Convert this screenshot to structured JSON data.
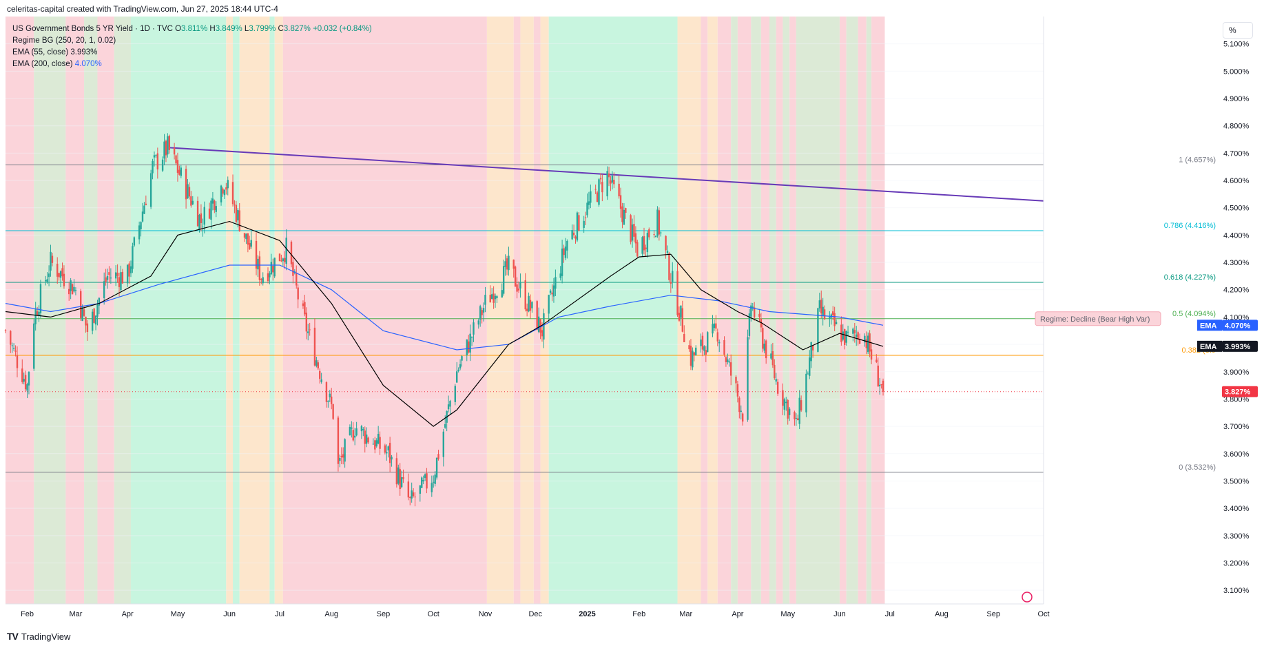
{
  "header": {
    "credit": "celeritas-capital created with TradingView.com, Jun 27, 2025 18:44 UTC-4"
  },
  "legend": {
    "title": "US Government Bonds 5 YR Yield · 1D · TVC",
    "o_label": "O",
    "o_value": "3.811%",
    "h_label": "H",
    "h_value": "3.849%",
    "l_label": "L",
    "l_value": "3.799%",
    "c_label": "C",
    "c_value": "3.827%",
    "change": "+0.032 (+0.84%)",
    "regime_label": "Regime BG (250, 20, 1, 0.02)",
    "ema55_label": "EMA (55, close)",
    "ema55_value": "3.993%",
    "ema200_label": "EMA (200, close)",
    "ema200_value": "4.070%"
  },
  "scale_button": "%",
  "footer": {
    "brand": "TradingView",
    "logo_icon": "tradingview-logo-icon"
  },
  "colors": {
    "up": "#26a69a",
    "down": "#ef5350",
    "ema55": "#000000",
    "ema200": "#2962ff",
    "trendline": "#673ab7",
    "regime_green": "#c8f5df",
    "regime_red": "#fbd4da",
    "regime_orange": "#fde6cc",
    "regime_sage": "#dcead6"
  },
  "chart_data": {
    "type": "candlestick",
    "title": "US Government Bonds 5 YR Yield · 1D · TVC",
    "y_unit": "%",
    "ylim": [
      3.05,
      5.2
    ],
    "y_ticks": [
      "5.100%",
      "5.000%",
      "4.900%",
      "4.800%",
      "4.700%",
      "4.600%",
      "4.500%",
      "4.400%",
      "4.300%",
      "4.200%",
      "4.100%",
      "4.000%",
      "3.900%",
      "3.800%",
      "3.700%",
      "3.600%",
      "3.500%",
      "3.400%",
      "3.300%",
      "3.200%",
      "3.100%"
    ],
    "x_ticks": [
      "Feb",
      "Mar",
      "Apr",
      "May",
      "Jun",
      "Jul",
      "Aug",
      "Sep",
      "Oct",
      "Nov",
      "Dec",
      "2025",
      "Feb",
      "Mar",
      "Apr",
      "May",
      "Jun",
      "Jul",
      "Aug",
      "Sep",
      "Oct"
    ],
    "price_path": [
      [
        "2024-01-19",
        4.05
      ],
      [
        "2024-02-01",
        3.85
      ],
      [
        "2024-02-05",
        4.1
      ],
      [
        "2024-02-15",
        4.3
      ],
      [
        "2024-03-01",
        4.2
      ],
      [
        "2024-03-08",
        4.05
      ],
      [
        "2024-03-20",
        4.25
      ],
      [
        "2024-04-01",
        4.25
      ],
      [
        "2024-04-16",
        4.65
      ],
      [
        "2024-04-25",
        4.72
      ],
      [
        "2024-05-15",
        4.45
      ],
      [
        "2024-05-29",
        4.6
      ],
      [
        "2024-06-10",
        4.4
      ],
      [
        "2024-06-20",
        4.25
      ],
      [
        "2024-07-05",
        4.35
      ],
      [
        "2024-07-15",
        4.1
      ],
      [
        "2024-08-02",
        3.75
      ],
      [
        "2024-08-05",
        3.55
      ],
      [
        "2024-08-15",
        3.7
      ],
      [
        "2024-09-04",
        3.6
      ],
      [
        "2024-09-17",
        3.42
      ],
      [
        "2024-10-01",
        3.52
      ],
      [
        "2024-10-15",
        3.9
      ],
      [
        "2024-11-01",
        4.15
      ],
      [
        "2024-11-15",
        4.28
      ],
      [
        "2024-12-05",
        4.05
      ],
      [
        "2024-12-20",
        4.38
      ],
      [
        "2025-01-13",
        4.62
      ],
      [
        "2025-01-31",
        4.35
      ],
      [
        "2025-02-12",
        4.45
      ],
      [
        "2025-03-04",
        3.95
      ],
      [
        "2025-03-20",
        4.05
      ],
      [
        "2025-04-04",
        3.75
      ],
      [
        "2025-04-09",
        4.15
      ],
      [
        "2025-04-25",
        3.85
      ],
      [
        "2025-05-06",
        3.7
      ],
      [
        "2025-05-20",
        4.12
      ],
      [
        "2025-06-05",
        4.02
      ],
      [
        "2025-06-15",
        4.05
      ],
      [
        "2025-06-27",
        3.827
      ]
    ],
    "ema55_path": [
      [
        "2024-01-19",
        4.12
      ],
      [
        "2024-02-15",
        4.1
      ],
      [
        "2024-03-15",
        4.15
      ],
      [
        "2024-04-15",
        4.25
      ],
      [
        "2024-05-01",
        4.4
      ],
      [
        "2024-06-01",
        4.45
      ],
      [
        "2024-07-01",
        4.38
      ],
      [
        "2024-08-01",
        4.15
      ],
      [
        "2024-09-01",
        3.85
      ],
      [
        "2024-10-01",
        3.7
      ],
      [
        "2024-10-15",
        3.76
      ],
      [
        "2024-11-15",
        4.0
      ],
      [
        "2024-12-05",
        4.07
      ],
      [
        "2025-01-15",
        4.25
      ],
      [
        "2025-02-01",
        4.32
      ],
      [
        "2025-02-20",
        4.33
      ],
      [
        "2025-03-10",
        4.2
      ],
      [
        "2025-04-01",
        4.12
      ],
      [
        "2025-04-15",
        4.08
      ],
      [
        "2025-05-10",
        3.98
      ],
      [
        "2025-06-01",
        4.04
      ],
      [
        "2025-06-27",
        3.993
      ]
    ],
    "ema200_path": [
      [
        "2024-01-19",
        4.15
      ],
      [
        "2024-02-15",
        4.12
      ],
      [
        "2024-03-15",
        4.15
      ],
      [
        "2024-04-20",
        4.22
      ],
      [
        "2024-06-01",
        4.29
      ],
      [
        "2024-07-01",
        4.29
      ],
      [
        "2024-08-01",
        4.2
      ],
      [
        "2024-09-01",
        4.05
      ],
      [
        "2024-10-15",
        3.98
      ],
      [
        "2024-11-15",
        4.0
      ],
      [
        "2024-12-15",
        4.1
      ],
      [
        "2025-01-15",
        4.14
      ],
      [
        "2025-02-20",
        4.18
      ],
      [
        "2025-03-20",
        4.16
      ],
      [
        "2025-04-20",
        4.12
      ],
      [
        "2025-06-01",
        4.1
      ],
      [
        "2025-06-27",
        4.07
      ]
    ],
    "trendline": {
      "from": [
        "2024-04-26",
        4.72
      ],
      "to": [
        "2025-10-01",
        4.525
      ]
    },
    "fib_levels": [
      {
        "label": "1 (4.657%)",
        "value": 4.657,
        "color": "#787b86"
      },
      {
        "label": "0.786 (4.416%)",
        "value": 4.416,
        "color": "#00bcd4"
      },
      {
        "label": "0.618 (4.227%)",
        "value": 4.227,
        "color": "#089981"
      },
      {
        "label": "0.5 (4.094%)",
        "value": 4.094,
        "color": "#4caf50"
      },
      {
        "label": "0.382 (3.9",
        "value": 3.96,
        "color": "#ff9800"
      },
      {
        "label": "0 (3.532%)",
        "value": 3.532,
        "color": "#787b86"
      }
    ],
    "regime_label": "Regime: Decline (Bear High Var)",
    "tags": [
      {
        "label": "EMA",
        "value": "4.070%",
        "y": 4.07,
        "color": "#2962ff"
      },
      {
        "label": "EMA",
        "value": "3.993%",
        "y": 3.993,
        "color": "#131722"
      },
      {
        "label": "",
        "value": "3.827%",
        "y": 3.827,
        "color": "#f23645"
      }
    ],
    "last_close": 3.827,
    "regime_bg": [
      [
        "2024-01-19",
        "red"
      ],
      [
        "2024-02-05",
        "sage"
      ],
      [
        "2024-02-24",
        "red"
      ],
      [
        "2024-03-06",
        "sage"
      ],
      [
        "2024-03-14",
        "red"
      ],
      [
        "2024-03-24",
        "sage"
      ],
      [
        "2024-04-03",
        "green"
      ],
      [
        "2024-05-30",
        "orange"
      ],
      [
        "2024-06-03",
        "green"
      ],
      [
        "2024-06-07",
        "orange"
      ],
      [
        "2024-06-25",
        "green"
      ],
      [
        "2024-06-28",
        "orange"
      ],
      [
        "2024-07-03",
        "red"
      ],
      [
        "2024-11-02",
        "orange"
      ],
      [
        "2024-11-18",
        "red"
      ],
      [
        "2024-11-22",
        "orange"
      ],
      [
        "2024-11-30",
        "red"
      ],
      [
        "2024-12-04",
        "orange"
      ],
      [
        "2024-12-09",
        "green"
      ],
      [
        "2025-02-24",
        "orange"
      ],
      [
        "2025-03-10",
        "red"
      ],
      [
        "2025-03-14",
        "orange"
      ],
      [
        "2025-03-20",
        "red"
      ],
      [
        "2025-03-28",
        "sage"
      ],
      [
        "2025-04-01",
        "red"
      ],
      [
        "2025-04-09",
        "sage"
      ],
      [
        "2025-04-15",
        "red"
      ],
      [
        "2025-04-20",
        "sage"
      ],
      [
        "2025-04-24",
        "red"
      ],
      [
        "2025-04-28",
        "sage"
      ],
      [
        "2025-05-02",
        "red"
      ],
      [
        "2025-05-06",
        "sage"
      ],
      [
        "2025-06-01",
        "red"
      ],
      [
        "2025-06-05",
        "sage"
      ],
      [
        "2025-06-12",
        "red"
      ],
      [
        "2025-06-17",
        "sage"
      ],
      [
        "2025-06-20",
        "red"
      ],
      [
        "2025-06-28",
        "none"
      ]
    ]
  }
}
